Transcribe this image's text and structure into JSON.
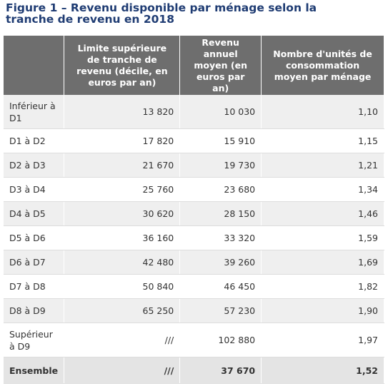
{
  "title": "Figure 1 – Revenu disponible par ménage selon la tranche de revenu en 2018",
  "table": {
    "header": [
      "",
      "Limite supérieure de tranche de revenu (décile, en euros par an)",
      "Revenu annuel moyen (en euros par an)",
      "Nombre d'unités de consommation moyen par ménage"
    ],
    "rows": [
      [
        "Inférieur à D1",
        "13 820",
        "10 030",
        "1,10"
      ],
      [
        "D1 à D2",
        "17 820",
        "15 910",
        "1,15"
      ],
      [
        "D2 à D3",
        "21 670",
        "19 730",
        "1,21"
      ],
      [
        "D3 à D4",
        "25 760",
        "23 680",
        "1,34"
      ],
      [
        "D4 à D5",
        "30 620",
        "28 150",
        "1,46"
      ],
      [
        "D5 à D6",
        "36 160",
        "33 320",
        "1,59"
      ],
      [
        "D6 à D7",
        "42 480",
        "39 260",
        "1,69"
      ],
      [
        "D7 à D8",
        "50 840",
        "46 450",
        "1,82"
      ],
      [
        "D8 à D9",
        "65 250",
        "57 230",
        "1,90"
      ],
      [
        "Supérieur à D9",
        "///",
        "102 880",
        "1,97"
      ],
      [
        "Ensemble",
        "///",
        "37 670",
        "1,52"
      ]
    ]
  }
}
